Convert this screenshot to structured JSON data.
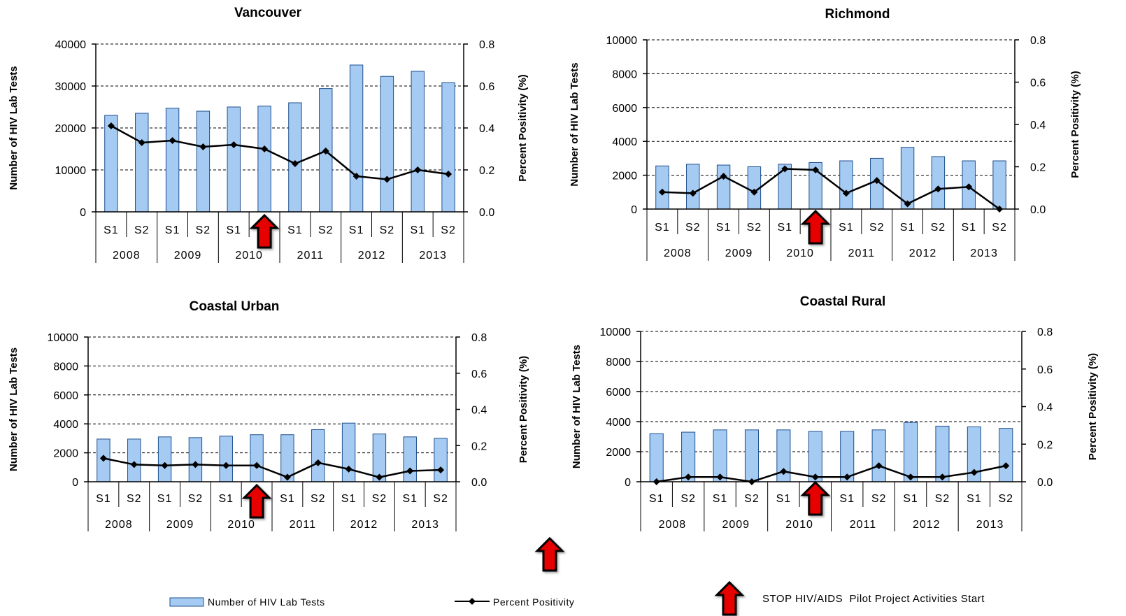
{
  "chart_data": [
    {
      "type": "bar",
      "title": "Vancouver",
      "ylabel": "Number of HIV Lab Tests",
      "y2label": "Percent Positivity (%)",
      "ylim": [
        0,
        40000
      ],
      "yticks": [
        0,
        10000,
        20000,
        30000,
        40000
      ],
      "y2lim": [
        0,
        0.8
      ],
      "y2ticks": [
        "0.0",
        "0.2",
        "0.4",
        "0.6",
        "0.8"
      ],
      "grid": true,
      "categories": [
        "S1",
        "S2",
        "S1",
        "S2",
        "S1",
        "S2",
        "S1",
        "S2",
        "S1",
        "S2",
        "S1",
        "S2"
      ],
      "groups": [
        "2008",
        "2009",
        "2010",
        "2011",
        "2012",
        "2013"
      ],
      "series": [
        {
          "name": "Number of HIV Lab Tests",
          "type": "bar",
          "axis": "left",
          "values": [
            23000,
            23500,
            24700,
            24000,
            25000,
            25200,
            26000,
            29400,
            35000,
            32300,
            33500,
            30800
          ]
        },
        {
          "name": "Percent Positivity",
          "type": "line",
          "axis": "right",
          "values": [
            0.41,
            0.33,
            0.34,
            0.31,
            0.32,
            0.3,
            0.23,
            0.29,
            0.17,
            0.155,
            0.2,
            0.18
          ]
        }
      ],
      "marker": {
        "category_index": 5,
        "label": "STOP HIV/AIDS Pilot Project Activities Start"
      }
    },
    {
      "type": "bar",
      "title": "Richmond",
      "ylabel": "Number of HIV Lab Tests",
      "y2label": "Percent Positivity (%)",
      "ylim": [
        0,
        10000
      ],
      "yticks": [
        0,
        2000,
        4000,
        6000,
        8000,
        10000
      ],
      "y2lim": [
        0,
        0.8
      ],
      "y2ticks": [
        "0.0",
        "0.2",
        "0.4",
        "0.6",
        "0.8"
      ],
      "grid": true,
      "categories": [
        "S1",
        "S2",
        "S1",
        "S2",
        "S1",
        "S2",
        "S1",
        "S2",
        "S1",
        "S2",
        "S1",
        "S2"
      ],
      "groups": [
        "2008",
        "2009",
        "2010",
        "2011",
        "2012",
        "2013"
      ],
      "series": [
        {
          "name": "Number of HIV Lab Tests",
          "type": "bar",
          "axis": "left",
          "values": [
            2550,
            2650,
            2600,
            2500,
            2650,
            2750,
            2850,
            3000,
            3650,
            3100,
            2850,
            2850
          ]
        },
        {
          "name": "Percent Positivity",
          "type": "line",
          "axis": "right",
          "values": [
            0.08,
            0.075,
            0.155,
            0.08,
            0.19,
            0.185,
            0.075,
            0.135,
            0.025,
            0.095,
            0.105,
            0.0
          ]
        }
      ],
      "marker": {
        "category_index": 5,
        "label": "STOP HIV/AIDS Pilot Project Activities Start"
      }
    },
    {
      "type": "bar",
      "title": "Coastal Urban",
      "ylabel": "Number of HIV Lab Tests",
      "y2label": "Percent Positivity (%)",
      "ylim": [
        0,
        10000
      ],
      "yticks": [
        0,
        2000,
        4000,
        6000,
        8000,
        10000
      ],
      "y2lim": [
        0,
        0.8
      ],
      "y2ticks": [
        "0.0",
        "0.2",
        "0.4",
        "0.6",
        "0.8"
      ],
      "grid": true,
      "categories": [
        "S1",
        "S2",
        "S1",
        "S2",
        "S1",
        "S2",
        "S1",
        "S2",
        "S1",
        "S2",
        "S1",
        "S2"
      ],
      "groups": [
        "2008",
        "2009",
        "2010",
        "2011",
        "2012",
        "2013"
      ],
      "series": [
        {
          "name": "Number of HIV Lab Tests",
          "type": "bar",
          "axis": "left",
          "values": [
            2950,
            2950,
            3100,
            3050,
            3150,
            3250,
            3250,
            3600,
            4050,
            3300,
            3100,
            3000
          ]
        },
        {
          "name": "Percent Positivity",
          "type": "line",
          "axis": "right",
          "values": [
            0.13,
            0.095,
            0.09,
            0.095,
            0.09,
            0.09,
            0.025,
            0.105,
            0.07,
            0.025,
            0.06,
            0.065
          ]
        }
      ],
      "marker": {
        "category_index": 5,
        "label": "STOP HIV/AIDS Pilot Project Activities Start"
      }
    },
    {
      "type": "bar",
      "title": "Coastal Rural",
      "ylabel": "Number of HIV Lab Tests",
      "y2label": "Percent Positivity (%)",
      "ylim": [
        0,
        10000
      ],
      "yticks": [
        0,
        2000,
        4000,
        6000,
        8000,
        10000
      ],
      "y2lim": [
        0,
        0.8
      ],
      "y2ticks": [
        "0.0",
        "0.2",
        "0.4",
        "0.6",
        "0.8"
      ],
      "grid": true,
      "categories": [
        "S1",
        "S2",
        "S1",
        "S2",
        "S1",
        "S2",
        "S1",
        "S2",
        "S1",
        "S2",
        "S1",
        "S2"
      ],
      "groups": [
        "2008",
        "2009",
        "2010",
        "2011",
        "2012",
        "2013"
      ],
      "series": [
        {
          "name": "Number of HIV Lab Tests",
          "type": "bar",
          "axis": "left",
          "values": [
            3200,
            3300,
            3450,
            3450,
            3450,
            3350,
            3350,
            3450,
            3950,
            3700,
            3650,
            3550
          ]
        },
        {
          "name": "Percent Positivity",
          "type": "line",
          "axis": "right",
          "values": [
            0.0,
            0.025,
            0.025,
            0.0,
            0.055,
            0.025,
            0.025,
            0.085,
            0.025,
            0.025,
            0.05,
            0.085
          ]
        }
      ],
      "marker": {
        "category_index": 5,
        "label": "STOP HIV/AIDS Pilot Project Activities Start"
      }
    }
  ],
  "legend": {
    "bars_label": "Number of HIV Lab Tests",
    "line_label": "Percent Positivity",
    "arrow_label": "STOP HIV/AIDS  Pilot Project Activities Start"
  },
  "colors": {
    "bar_fill": "#a6cbf3",
    "bar_stroke": "#1f4f8c",
    "line": "#000000",
    "arrow_fill": "#e60000",
    "arrow_stroke": "#000000",
    "grid": "#000000"
  }
}
